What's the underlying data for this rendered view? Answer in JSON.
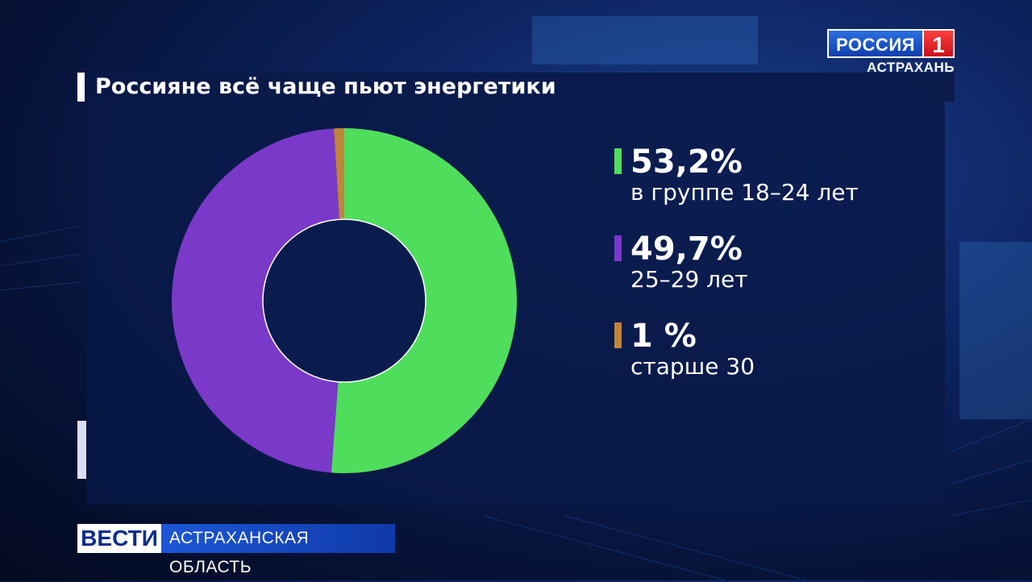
{
  "chart_data": {
    "type": "pie",
    "donut": true,
    "title": "Россияне всё чаще пьют энергетики",
    "series": [
      {
        "name": "в группе 18–24 лет",
        "label": "53,2%",
        "value": 53.2,
        "color": "#4fde5b"
      },
      {
        "name": "25–29 лет",
        "label": "49,7%",
        "value": 49.7,
        "color": "#7a39c9"
      },
      {
        "name": "старше 30",
        "label": "1 %",
        "value": 1,
        "color": "#c0853a"
      }
    ],
    "legend_position": "right"
  },
  "channel": {
    "logo_name": "РОССИЯ",
    "logo_number": "1",
    "region": "АСТРАХАНЬ"
  },
  "lower_third": {
    "program": "ВЕСТИ",
    "region": "АСТРАХАНСКАЯ ОБЛАСТЬ"
  }
}
